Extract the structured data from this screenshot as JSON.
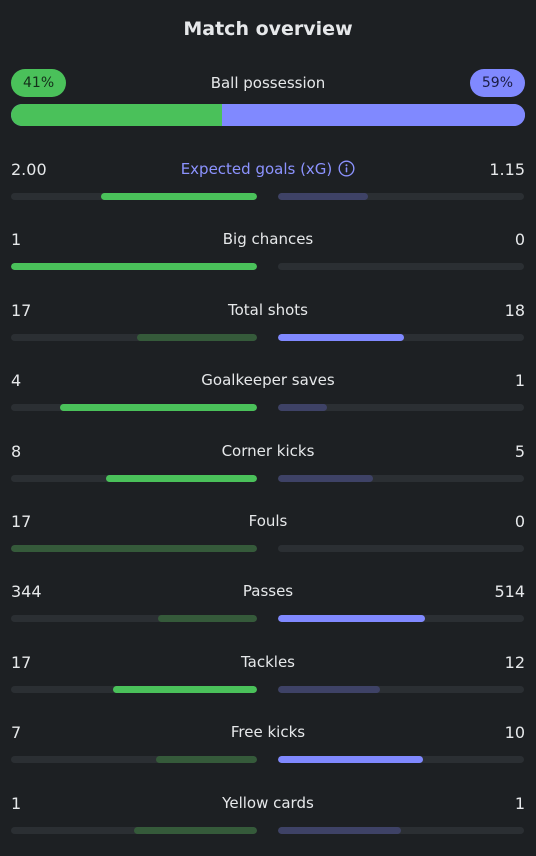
{
  "title": "Match overview",
  "colors": {
    "home_strong": "#4ac15a",
    "home_weak": "#355a3a",
    "away_strong": "#8089ff",
    "away_weak": "#3e4266",
    "track": "#2b2f33",
    "background": "#1d2023"
  },
  "possession": {
    "label": "Ball possession",
    "home_text": "41%",
    "away_text": "59%",
    "home_pct": 41,
    "away_pct": 59
  },
  "stats": [
    {
      "label": "Expected goals (xG)",
      "home": "2.00",
      "away": "1.15",
      "home_fill": 0.635,
      "away_fill": 0.365,
      "winner": "home",
      "accent": true,
      "icon": "info-icon"
    },
    {
      "label": "Big chances",
      "home": "1",
      "away": "0",
      "home_fill": 1.0,
      "away_fill": 0.0,
      "winner": "home"
    },
    {
      "label": "Total shots",
      "home": "17",
      "away": "18",
      "home_fill": 0.486,
      "away_fill": 0.514,
      "winner": "away"
    },
    {
      "label": "Goalkeeper saves",
      "home": "4",
      "away": "1",
      "home_fill": 0.8,
      "away_fill": 0.2,
      "winner": "home"
    },
    {
      "label": "Corner kicks",
      "home": "8",
      "away": "5",
      "home_fill": 0.615,
      "away_fill": 0.385,
      "winner": "home"
    },
    {
      "label": "Fouls",
      "home": "17",
      "away": "0",
      "home_fill": 1.0,
      "away_fill": 0.0,
      "winner": "away"
    },
    {
      "label": "Passes",
      "home": "344",
      "away": "514",
      "home_fill": 0.401,
      "away_fill": 0.599,
      "winner": "away"
    },
    {
      "label": "Tackles",
      "home": "17",
      "away": "12",
      "home_fill": 0.586,
      "away_fill": 0.414,
      "winner": "home"
    },
    {
      "label": "Free kicks",
      "home": "7",
      "away": "10",
      "home_fill": 0.412,
      "away_fill": 0.588,
      "winner": "away"
    },
    {
      "label": "Yellow cards",
      "home": "1",
      "away": "1",
      "home_fill": 0.5,
      "away_fill": 0.5,
      "winner": "none"
    }
  ]
}
